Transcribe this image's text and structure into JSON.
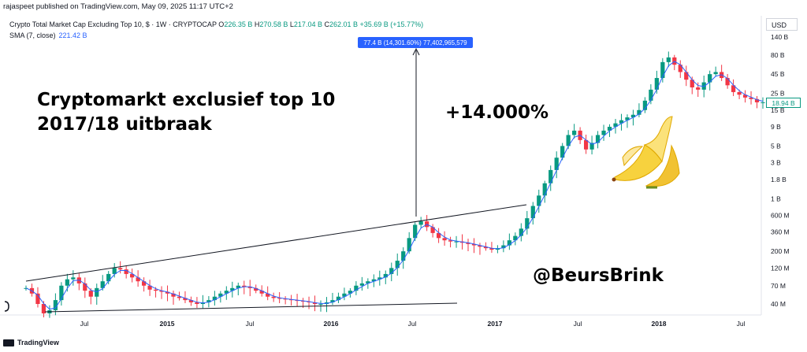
{
  "publish_line": "rajaspeet published on TradingView.com, May 09, 2025 11:17 UTC+2",
  "header": {
    "symbol": "Crypto Total Market Cap Excluding Top 10, $ · 1W · CRYPTOCAP",
    "o_label": "O",
    "o_value": "226.35 B",
    "h_label": "H",
    "h_value": "270.58 B",
    "l_label": "L",
    "l_value": "217.04 B",
    "c_label": "C",
    "c_value": "262.01 B",
    "change": "+35.69 B (+15.77%)",
    "sma_label": "SMA (7, close)",
    "sma_value": "221.42 B"
  },
  "currency": "USD",
  "annotations": {
    "title_line1": "Cryptomarkt exclusief top 10",
    "title_line2": "2017/18 uitbraak",
    "gain": "+14.000%",
    "handle": "@BeursBrink",
    "measure_label": "77.4 B (14,301.60%) 77,402,965,579",
    "last_price": "18.94 B"
  },
  "footer": {
    "brand": "TradingView"
  },
  "colors": {
    "up": "#089981",
    "down": "#f23645",
    "sma": "#2962ff",
    "measure": "#2962ff"
  },
  "chart_data": {
    "type": "candlestick",
    "scale": "log",
    "y_ticks": [
      "140 B",
      "80 B",
      "45 B",
      "25 B",
      "15 B",
      "9 B",
      "5 B",
      "3 B",
      "1.8 B",
      "1 B",
      "600 M",
      "360 M",
      "200 M",
      "120 M",
      "70 M",
      "40 M"
    ],
    "x_ticks": [
      "Jul",
      "2015",
      "Jul",
      "2016",
      "Jul",
      "2017",
      "Jul",
      "2018",
      "Jul"
    ],
    "x_ticks_bold": [
      false,
      true,
      false,
      true,
      false,
      true,
      false,
      true,
      false
    ],
    "series": [
      {
        "values": [
          0.065,
          0.055,
          0.04,
          0.03,
          0.033,
          0.045,
          0.07,
          0.085,
          0.09,
          0.075,
          0.06,
          0.05,
          0.065,
          0.08,
          0.1,
          0.12,
          0.115,
          0.1,
          0.09,
          0.08,
          0.07,
          0.062,
          0.06,
          0.058,
          0.055,
          0.05,
          0.048,
          0.045,
          0.042,
          0.04,
          0.042,
          0.045,
          0.05,
          0.055,
          0.06,
          0.065,
          0.07,
          0.068,
          0.065,
          0.06,
          0.055,
          0.05,
          0.048,
          0.047,
          0.046,
          0.045,
          0.044,
          0.043,
          0.042,
          0.04,
          0.04,
          0.042,
          0.045,
          0.05,
          0.055,
          0.06,
          0.07,
          0.075,
          0.08,
          0.085,
          0.09,
          0.1,
          0.12,
          0.15,
          0.2,
          0.3,
          0.45,
          0.5,
          0.42,
          0.35,
          0.3,
          0.28,
          0.27,
          0.27,
          0.26,
          0.25,
          0.24,
          0.23,
          0.22,
          0.21,
          0.22,
          0.24,
          0.28,
          0.32,
          0.4,
          0.55,
          0.8,
          1.1,
          1.6,
          2.4,
          3.5,
          5,
          7,
          8,
          6,
          4.5,
          5.5,
          7,
          8,
          9,
          10,
          11,
          12,
          13,
          15,
          20,
          28,
          40,
          65,
          75,
          60,
          48,
          38,
          30,
          28,
          35,
          45,
          48,
          40,
          32,
          26,
          24,
          22,
          21,
          19,
          19
        ]
      }
    ],
    "trendlines": "two converging lines plus vertical measurement"
  }
}
